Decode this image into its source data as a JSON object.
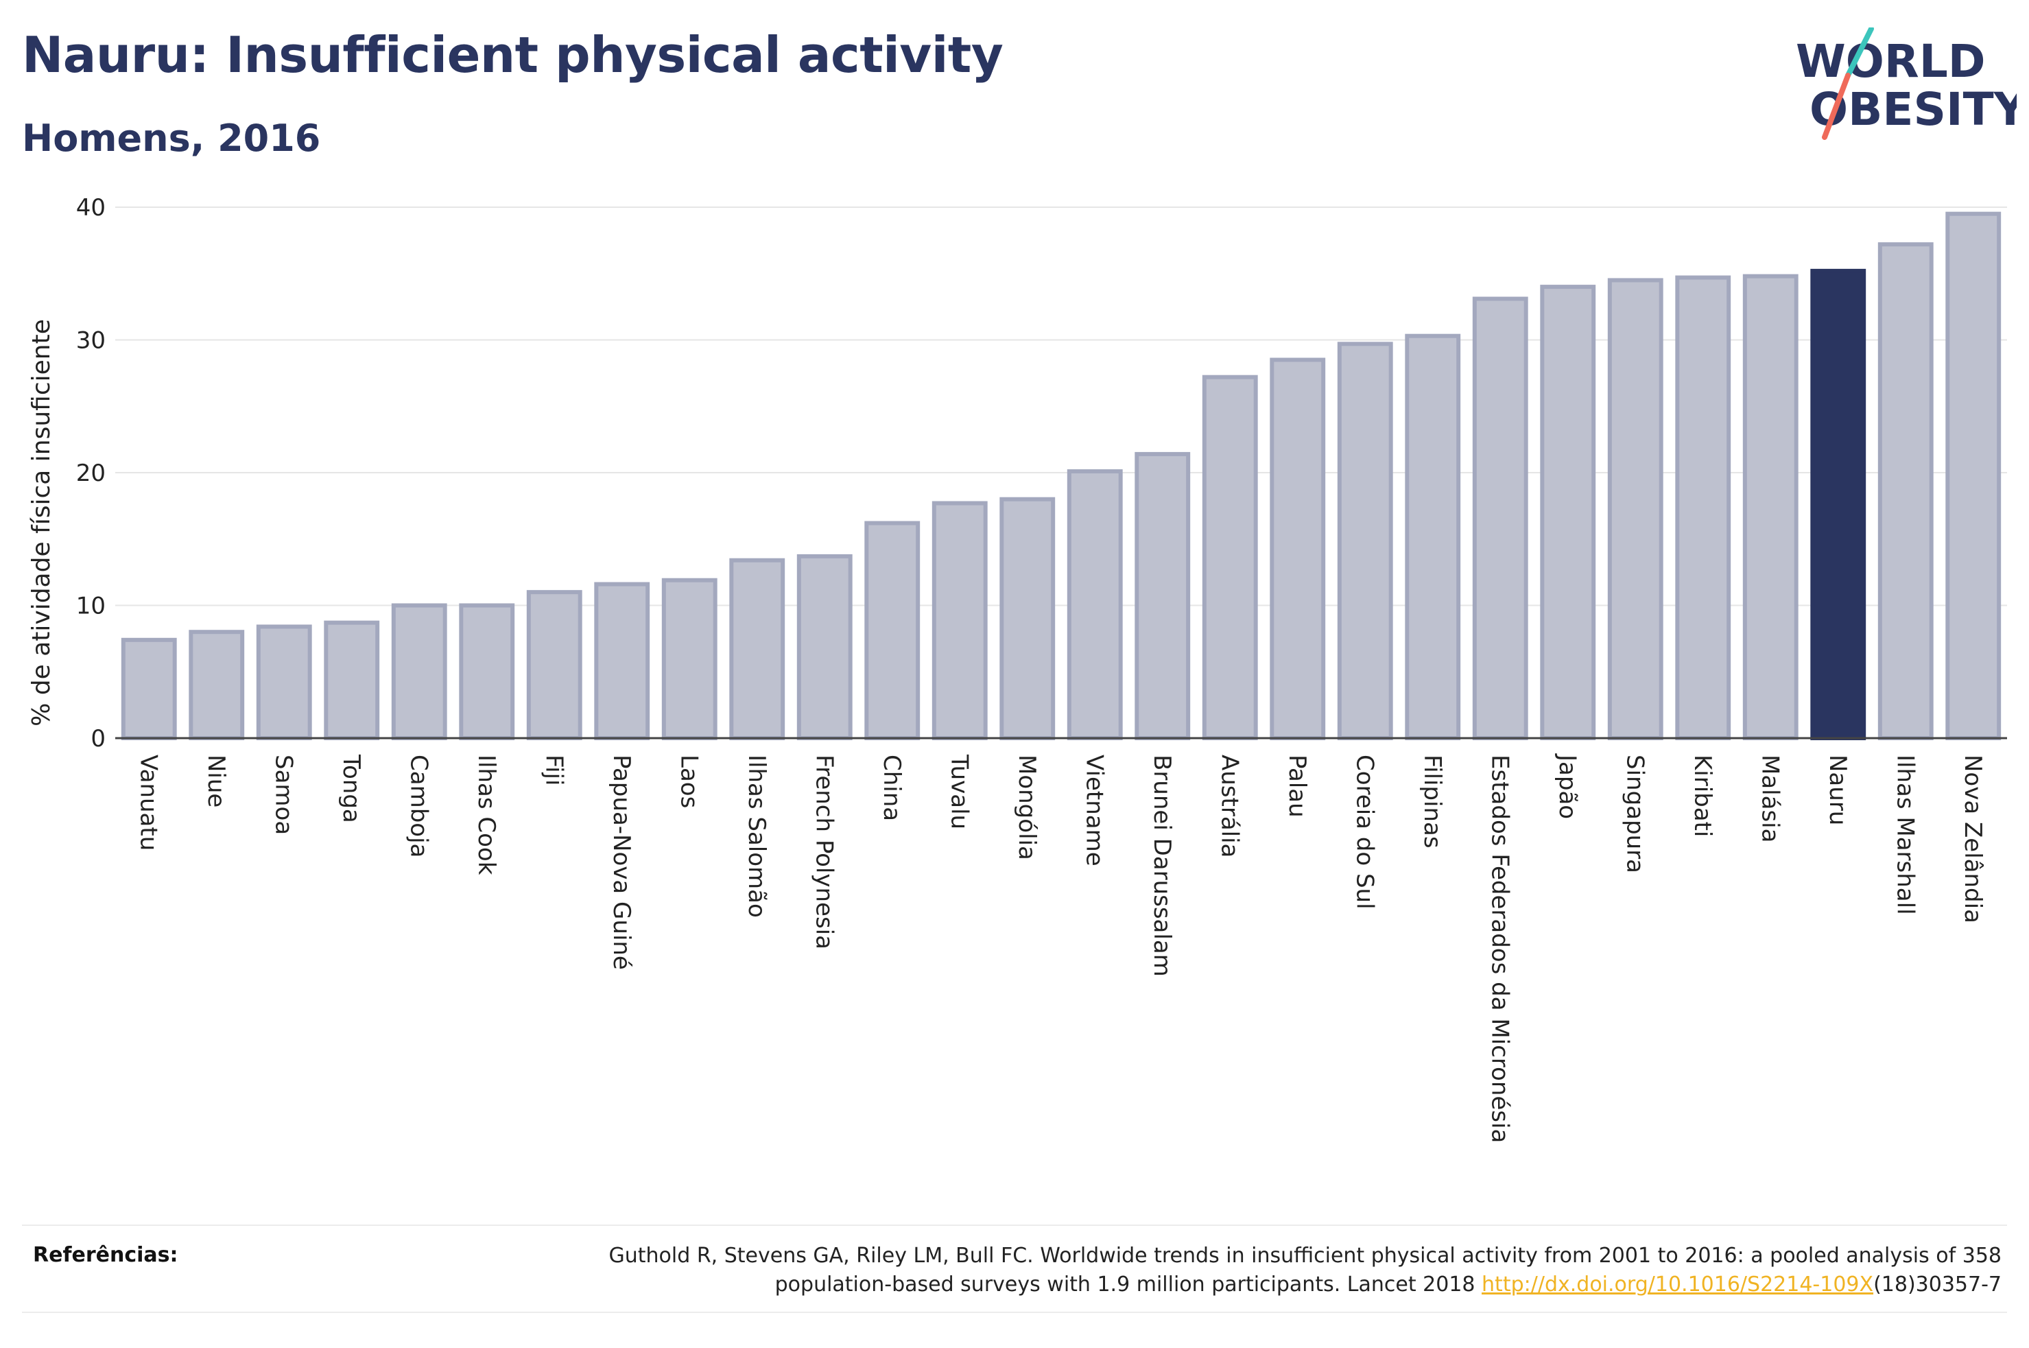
{
  "header": {
    "title": "Nauru: Insufficient physical activity",
    "subtitle": "Homens, 2016"
  },
  "logo": {
    "line1": "WORLD",
    "line2": "OBESITY",
    "accent_colors": [
      "#3cc5bc",
      "#ef6a5a"
    ]
  },
  "colors": {
    "bar": "#bec1cf",
    "bar_border": "#a3a8be",
    "highlight": "#2a3560",
    "text": "#2a3560"
  },
  "chart_data": {
    "type": "bar",
    "title": "Nauru: Insufficient physical activity",
    "subtitle": "Homens, 2016",
    "xlabel": "",
    "ylabel": "% de atividade física insuficiente",
    "ylim": [
      0,
      40
    ],
    "yticks": [
      0,
      10,
      20,
      30,
      40
    ],
    "grid": true,
    "highlight": "Nauru",
    "categories": [
      "Vanuatu",
      "Niue",
      "Samoa",
      "Tonga",
      "Camboja",
      "Ilhas Cook",
      "Fiji",
      "Papua-Nova Guiné",
      "Laos",
      "Ilhas Salomão",
      "French Polynesia",
      "China",
      "Tuvalu",
      "Mongólia",
      "Vietname",
      "Brunei Darussalam",
      "Austrália",
      "Palau",
      "Coreia do Sul",
      "Filipinas",
      "Estados Federados da Micronésia",
      "Japão",
      "Singapura",
      "Kiribati",
      "Malásia",
      "Nauru",
      "Ilhas Marshall",
      "Nova Zelândia"
    ],
    "values": [
      7.4,
      8.0,
      8.4,
      8.7,
      10.0,
      10.0,
      11.0,
      11.6,
      11.9,
      13.4,
      13.7,
      16.2,
      17.7,
      18.0,
      20.1,
      21.4,
      27.2,
      28.5,
      29.7,
      30.3,
      33.1,
      34.0,
      34.5,
      34.7,
      34.8,
      35.2,
      37.2,
      39.5
    ]
  },
  "references": {
    "label": "Referências:",
    "text_line1": "Guthold R, Stevens GA, Riley LM, Bull FC. Worldwide trends in insufficient physical activity from 2001 to 2016: a pooled analysis of 358",
    "text_line2": "population-based surveys with 1.9 million participants. Lancet 2018",
    "link": "http://dx.doi.org/10.1016/S2214-109X",
    "suffix": "(18)30357-7"
  }
}
